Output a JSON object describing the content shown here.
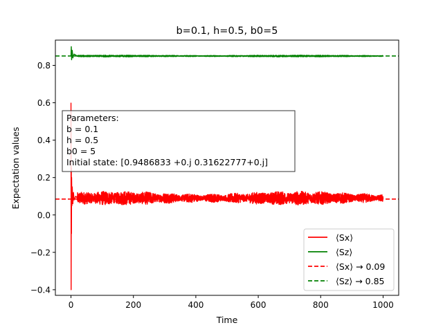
{
  "chart_data": {
    "type": "line",
    "title": "b=0.1, h=0.5, b0=5",
    "xlabel": "Time",
    "ylabel": "Expectation values",
    "xlim": [
      -50,
      1050
    ],
    "ylim": [
      -0.43,
      0.935
    ],
    "xticks": [
      0,
      200,
      400,
      600,
      800,
      1000
    ],
    "xtick_labels": [
      "0",
      "200",
      "400",
      "600",
      "800",
      "1000"
    ],
    "yticks": [
      -0.4,
      -0.2,
      0.0,
      0.2,
      0.4,
      0.6,
      0.8
    ],
    "ytick_labels": [
      "−0.4",
      "−0.2",
      "0.0",
      "0.2",
      "0.4",
      "0.6",
      "0.8"
    ],
    "grid": false,
    "legend_position": "lower right",
    "series": [
      {
        "name": "⟨Sx⟩",
        "color": "#ff0000",
        "style": "solid",
        "description_points": {
          "x": [
            0,
            0.5,
            1,
            1.5,
            2,
            3,
            4,
            6,
            8,
            10,
            15,
            20,
            50,
            100,
            200,
            300,
            400,
            500,
            600,
            700,
            800,
            900,
            1000
          ],
          "y": [
            0.6,
            -0.4,
            0.25,
            -0.1,
            0.2,
            0.05,
            0.15,
            0.06,
            0.12,
            0.08,
            0.1,
            0.09,
            0.09,
            0.09,
            0.09,
            0.09,
            0.09,
            0.09,
            0.09,
            0.09,
            0.09,
            0.09,
            0.09
          ]
        },
        "steady_value": 0.09,
        "oscillation_amplitude": 0.03
      },
      {
        "name": "⟨Sz⟩",
        "color": "#008000",
        "style": "solid",
        "description_points": {
          "x": [
            0,
            1,
            2,
            4,
            6,
            10,
            20,
            50,
            100,
            200,
            400,
            600,
            800,
            1000
          ],
          "y": [
            0.85,
            0.9,
            0.83,
            0.88,
            0.84,
            0.86,
            0.85,
            0.85,
            0.85,
            0.85,
            0.85,
            0.85,
            0.85,
            0.85
          ]
        },
        "steady_value": 0.85,
        "oscillation_amplitude": 0.004
      },
      {
        "name": "⟨Sx⟩ → 0.09",
        "color": "#ff0000",
        "style": "dashed",
        "y": 0.085
      },
      {
        "name": "⟨Sz⟩ → 0.85",
        "color": "#008000",
        "style": "dashed",
        "y": 0.85
      }
    ],
    "annotation": {
      "lines": [
        "Parameters:",
        "b = 0.1",
        "h = 0.5",
        "b0 = 5",
        "Initial state: [0.9486833 +0.j 0.31622777+0.j]"
      ]
    }
  }
}
